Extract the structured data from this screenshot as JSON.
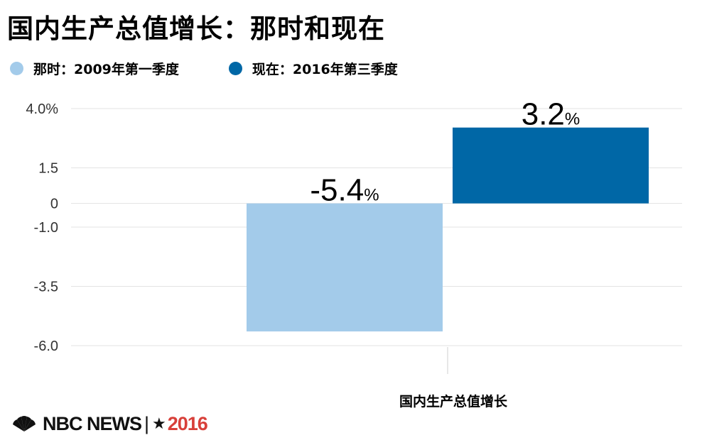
{
  "title": "国内生产总值增长：那时和现在",
  "colors": {
    "then": "#a3cbea",
    "now": "#0067a6",
    "grid": "#e3e3e3",
    "text": "#222222"
  },
  "logo": {
    "brand": "NBC NEWS",
    "separator": "|",
    "star": "★",
    "year": "2016"
  },
  "chart_data": {
    "type": "bar",
    "title": "国内生产总值增长：那时和现在",
    "xlabel": "",
    "ylabel": "",
    "categories": [
      "国内生产总值增长"
    ],
    "series": [
      {
        "name": "那时：2009年第一季度",
        "values": [
          -5.4
        ],
        "label": "-5.4",
        "unit": "%"
      },
      {
        "name": "现在：2016年第三季度",
        "values": [
          3.2
        ],
        "label": "3.2",
        "unit": "%"
      }
    ],
    "yticks": [
      "4.0%",
      "1.5",
      "0",
      "-1.0",
      "-3.5",
      "-6.0"
    ],
    "ytick_values": [
      4.0,
      1.5,
      0,
      -1.0,
      -3.5,
      -6.0
    ],
    "ylim": [
      -6.0,
      4.0
    ],
    "grid": true,
    "legend": "top-left"
  }
}
